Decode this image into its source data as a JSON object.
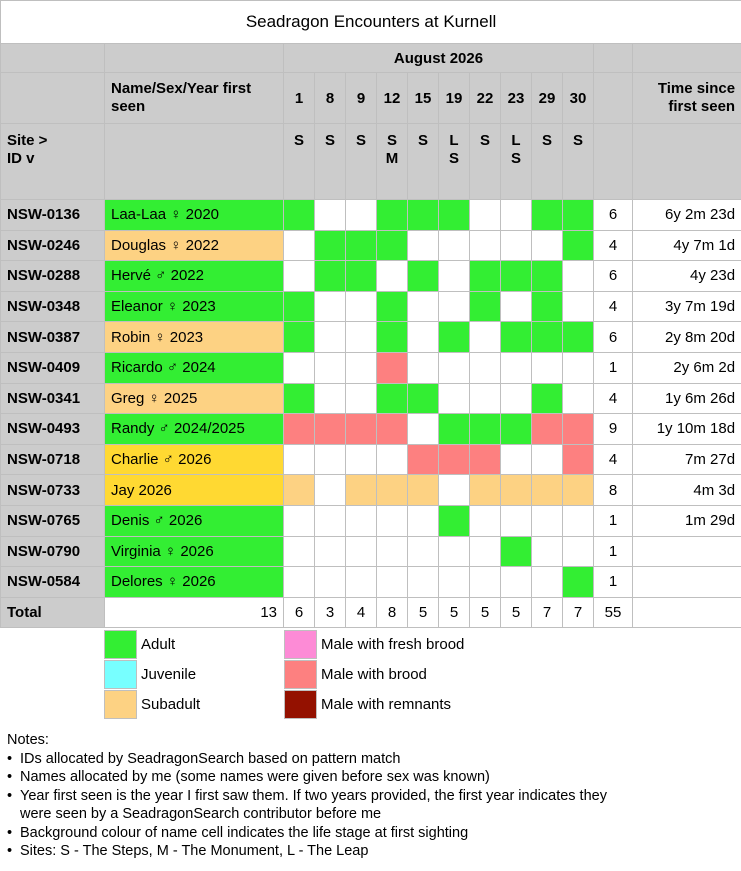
{
  "title": "Seadragon Encounters at Kurnell",
  "month": "August 2026",
  "name_header": "Name/Sex/Year first seen",
  "time_header": "Time since first seen",
  "site_header": [
    "Site >",
    "ID v"
  ],
  "days": [
    "1",
    "8",
    "9",
    "12",
    "15",
    "19",
    "22",
    "23",
    "29",
    "30"
  ],
  "sites": [
    "S",
    "S",
    "S",
    "S\nM",
    "S",
    "L\nS",
    "S",
    "L\nS",
    "S",
    "S"
  ],
  "colors": {
    "A": "#33ee33",
    "J": "#77ffff",
    "U": "#fdd283",
    "F": "#fd8bd6",
    "B": "#fd8080",
    "R": "#941100",
    "Y": "#ffd932",
    "W": "#ffffff"
  },
  "rows": [
    {
      "id": "NSW-0136",
      "name": "Laa-Laa ♀ 2020",
      "stage": "A",
      "cells": "AWWAAAWWAA",
      "count": "6",
      "since": "6y 2m 23d"
    },
    {
      "id": "NSW-0246",
      "name": "Douglas ♀ 2022",
      "stage": "U",
      "cells": "WAAAWWWWWA",
      "count": "4",
      "since": "4y 7m 1d"
    },
    {
      "id": "NSW-0288",
      "name": "Hervé ♂ 2022",
      "stage": "A",
      "cells": "WAAWAWAAAW",
      "count": "6",
      "since": "4y 23d"
    },
    {
      "id": "NSW-0348",
      "name": "Eleanor ♀ 2023",
      "stage": "A",
      "cells": "AWWAWWAWAW",
      "count": "4",
      "since": "3y 7m 19d"
    },
    {
      "id": "NSW-0387",
      "name": "Robin ♀ 2023",
      "stage": "U",
      "cells": "AWWAWAWAAA",
      "count": "6",
      "since": "2y 8m 20d"
    },
    {
      "id": "NSW-0409",
      "name": "Ricardo ♂ 2024",
      "stage": "A",
      "cells": "WWWBWWWWWW",
      "count": "1",
      "since": "2y 6m 2d"
    },
    {
      "id": "NSW-0341",
      "name": "Greg ♀ 2025",
      "stage": "U",
      "cells": "AWWAAWWWAW",
      "count": "4",
      "since": "1y 6m 26d"
    },
    {
      "id": "NSW-0493",
      "name": "Randy ♂ 2024/2025",
      "stage": "A",
      "cells": "BBBBWAAABB",
      "count": "9",
      "since": "1y 10m 18d"
    },
    {
      "id": "NSW-0718",
      "name": "Charlie ♂ 2026",
      "stage": "Y",
      "cells": "WWWWBBBWWB",
      "count": "4",
      "since": "7m 27d"
    },
    {
      "id": "NSW-0733",
      "name": "Jay 2026",
      "stage": "Y",
      "cells": "UWUUUWUUUU",
      "count": "8",
      "since": "4m 3d"
    },
    {
      "id": "NSW-0765",
      "name": "Denis ♂ 2026",
      "stage": "A",
      "cells": "WWWWWAWWWW",
      "count": "1",
      "since": "1m 29d"
    },
    {
      "id": "NSW-0790",
      "name": "Virginia ♀ 2026",
      "stage": "A",
      "cells": "WWWWWWWAWW",
      "count": "1",
      "since": ""
    },
    {
      "id": "NSW-0584",
      "name": "Delores ♀ 2026",
      "stage": "A",
      "cells": "WWWWWWWWWA",
      "count": "1",
      "since": ""
    }
  ],
  "total": {
    "label": "Total",
    "names": "13",
    "days": [
      "6",
      "3",
      "4",
      "8",
      "5",
      "5",
      "5",
      "5",
      "7",
      "7"
    ],
    "count": "55"
  },
  "legend": [
    {
      "key": "A",
      "label": "Adult"
    },
    {
      "key": "J",
      "label": "Juvenile"
    },
    {
      "key": "U",
      "label": "Subadult"
    },
    {
      "key": "F",
      "label": "Male with fresh brood"
    },
    {
      "key": "B",
      "label": "Male with brood"
    },
    {
      "key": "R",
      "label": "Male with remnants"
    }
  ],
  "notes_title": "Notes:",
  "notes": [
    "IDs allocated by SeadragonSearch based on pattern match",
    "Names allocated by me (some names were given before sex was known)",
    "Year first seen is the year I first saw them.  If two years provided, the first year indicates they were seen by a SeadragonSearch contributor before me",
    "Background colour of name cell indicates the life stage at first sighting",
    "Sites: S - The Steps, M - The Monument, L - The Leap"
  ]
}
